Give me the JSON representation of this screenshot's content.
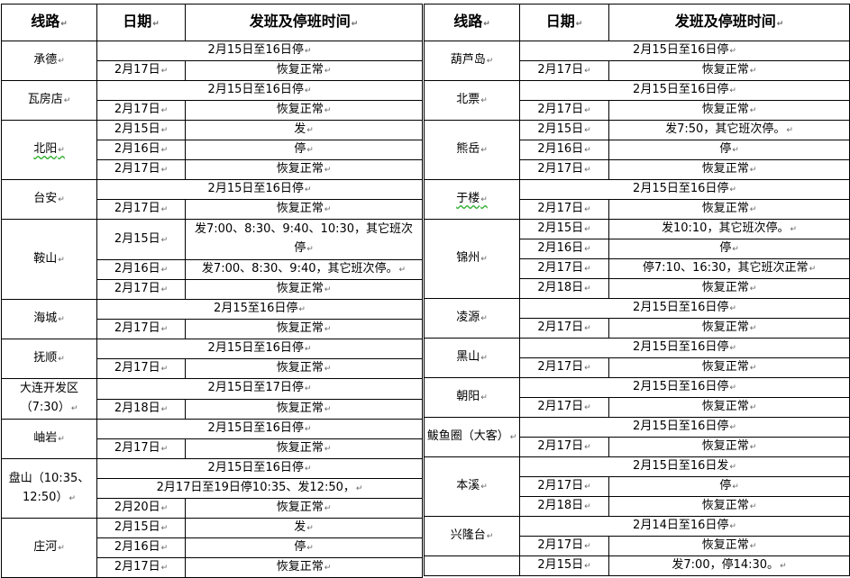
{
  "header": {
    "route": "线路",
    "date": "日期",
    "schedule": "发班及停班时间"
  },
  "left": [
    {
      "name": "承德",
      "rows": [
        {
          "span": "2月15日至16日停"
        },
        {
          "date": "2月17日",
          "text": "恢复正常"
        }
      ]
    },
    {
      "name": "瓦房店",
      "rows": [
        {
          "span": "2月15日至16日停"
        },
        {
          "date": "2月17日",
          "text": "恢复正常"
        }
      ]
    },
    {
      "name": "北阳",
      "rows": [
        {
          "date": "2月15日",
          "text": "发"
        },
        {
          "date": "2月16日",
          "text": "停"
        },
        {
          "date": "2月17日",
          "text": "恢复正常"
        }
      ]
    },
    {
      "name": "台安",
      "rows": [
        {
          "span": "2月15日至16日停"
        },
        {
          "date": "2月17日",
          "text": "恢复正常"
        }
      ]
    },
    {
      "name": "鞍山",
      "rows": [
        {
          "date": "2月15日",
          "text": "发7:00、8:30、9:40、10:30，其它班次停",
          "tall": true
        },
        {
          "date": "2月16日",
          "text": "发7:00、8:30、9:40，其它班次停。"
        },
        {
          "date": "2月17日",
          "text": "恢复正常"
        }
      ]
    },
    {
      "name": "海城",
      "rows": [
        {
          "span": "2月15至16日停"
        },
        {
          "date": "2月17日",
          "text": "恢复正常"
        }
      ]
    },
    {
      "name": "抚顺",
      "rows": [
        {
          "span": "2月15日至16日停"
        },
        {
          "date": "2月17日",
          "text": "恢复正常"
        }
      ]
    },
    {
      "name": "大连开发区（7:30）",
      "rows": [
        {
          "span": "2月15日至17日停"
        },
        {
          "date": "2月18日",
          "text": "恢复正常"
        }
      ]
    },
    {
      "name": "岫岩",
      "rows": [
        {
          "span": "2月15日至16日停"
        },
        {
          "date": "2月17日",
          "text": "恢复正常"
        }
      ]
    },
    {
      "name": "盘山（10:35、12:50）",
      "rows": [
        {
          "span": "2月15日至16日停"
        },
        {
          "span": "2月17日至19日停10:35、发12:50，"
        },
        {
          "date": "2月20日",
          "text": "恢复正常"
        }
      ]
    },
    {
      "name": "庄河",
      "rows": [
        {
          "date": "2月15日",
          "text": "发"
        },
        {
          "date": "2月16日",
          "text": "停"
        },
        {
          "date": "2月17日",
          "text": "恢复正常"
        }
      ]
    }
  ],
  "right": [
    {
      "name": "葫芦岛",
      "rows": [
        {
          "span": "2月15日至16日停"
        },
        {
          "date": "2月17日",
          "text": "恢复正常"
        }
      ]
    },
    {
      "name": "北票",
      "rows": [
        {
          "span": "2月15日至16日停"
        },
        {
          "date": "2月17日",
          "text": "恢复正常"
        }
      ]
    },
    {
      "name": "熊岳",
      "rows": [
        {
          "date": "2月15日",
          "text": "发7:50，其它班次停。"
        },
        {
          "date": "2月16日",
          "text": "停"
        },
        {
          "date": "2月17日",
          "text": "恢复正常"
        }
      ]
    },
    {
      "name": "于楼",
      "rows": [
        {
          "span": "2月15日至16日停"
        },
        {
          "date": "2月17日",
          "text": "恢复正常"
        }
      ]
    },
    {
      "name": "锦州",
      "rows": [
        {
          "date": "2月15日",
          "text": "发10:10，其它班次停。"
        },
        {
          "date": "2月16日",
          "text": "停"
        },
        {
          "date": "2月17日",
          "text": "停7:10、16:30，其它班次正常"
        },
        {
          "date": "2月18日",
          "text": "恢复正常"
        }
      ]
    },
    {
      "name": "凌源",
      "rows": [
        {
          "span": "2月15日至16日停"
        },
        {
          "date": "2月17日",
          "text": "恢复正常"
        }
      ]
    },
    {
      "name": "黑山",
      "rows": [
        {
          "span": "2月15日至16日停"
        },
        {
          "date": "2月17日",
          "text": "恢复正常"
        }
      ]
    },
    {
      "name": "朝阳",
      "rows": [
        {
          "span": "2月15日至16日停"
        },
        {
          "date": "2月17日",
          "text": "恢复正常"
        }
      ]
    },
    {
      "name": "鲅鱼圈（大客）",
      "rows": [
        {
          "span": "2月15日至16日停"
        },
        {
          "date": "2月17日",
          "text": "恢复正常"
        }
      ]
    },
    {
      "name": "本溪",
      "rows": [
        {
          "span": "2月15日至16日发"
        },
        {
          "date": "2月17日",
          "text": "停"
        },
        {
          "date": "2月18日",
          "text": "恢复正常"
        }
      ]
    },
    {
      "name": "兴隆台",
      "rows": [
        {
          "span": "2月14日至16日停"
        },
        {
          "date": "2月17日",
          "text": "恢复正常"
        }
      ]
    },
    {
      "name": "",
      "rows": [
        {
          "date": "2月15日",
          "text": "发7:00，停14:30。"
        }
      ]
    }
  ]
}
